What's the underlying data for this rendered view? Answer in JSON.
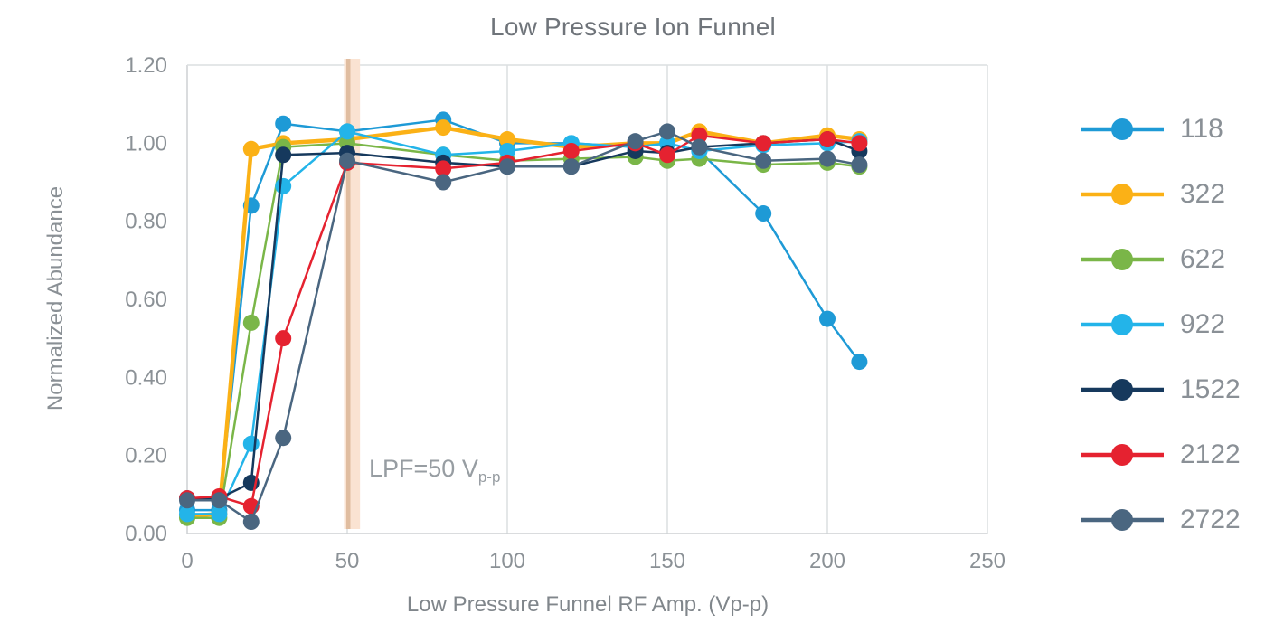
{
  "title": "Low Pressure Ion Funnel",
  "axes": {
    "x": {
      "label": "Low Pressure Funnel RF Amp. (Vp-p)",
      "tick_labels": [
        "0",
        "50",
        "100",
        "150",
        "200",
        "250"
      ],
      "tick_values": [
        0,
        50,
        100,
        150,
        200,
        250
      ],
      "min": 0,
      "max": 250
    },
    "y": {
      "label": "Normalized Abundance",
      "tick_labels": [
        "0.00",
        "0.20",
        "0.40",
        "0.60",
        "0.80",
        "1.00",
        "1.20"
      ],
      "tick_values": [
        0,
        0.2,
        0.4,
        0.6,
        0.8,
        1.0,
        1.2
      ],
      "min": 0,
      "max": 1.2
    }
  },
  "annotation": {
    "text": "LPF=50 V",
    "subscript": "p-p"
  },
  "highlight_band": {
    "x_start": 49,
    "x_end": 54,
    "stripe_x": 50,
    "fill": "#fae3d2",
    "stripe_color": "#e0bda0"
  },
  "style_colors": {
    "grid": "#dcdfe1",
    "axis": "#cdd0d3",
    "tick_text": "#8b9196",
    "title_text": "#6f747a",
    "annotation_text": "#979da2"
  },
  "chart_data": {
    "type": "line",
    "title": "Low Pressure Ion Funnel",
    "xlabel": "Low Pressure Funnel RF Amp. (Vp-p)",
    "ylabel": "Normalized Abundance",
    "xlim": [
      0,
      250
    ],
    "ylim": [
      0,
      1.2
    ],
    "grid": "vertical-only",
    "legend_position": "right",
    "x": [
      0,
      10,
      20,
      30,
      50,
      80,
      100,
      120,
      140,
      150,
      160,
      180,
      200,
      210
    ],
    "series": [
      {
        "name": "118",
        "color": "#1e9ad6",
        "line_width": 2.5,
        "values": [
          0.06,
          0.06,
          0.84,
          1.05,
          1.03,
          1.06,
          1.0,
          1.0,
          0.99,
          1.0,
          0.98,
          0.82,
          0.55,
          0.44
        ]
      },
      {
        "name": "322",
        "color": "#fbb116",
        "line_width": 4.5,
        "values": [
          0.045,
          0.05,
          0.985,
          1.0,
          1.01,
          1.04,
          1.01,
          0.99,
          1.0,
          1.0,
          1.03,
          1.0,
          1.02,
          1.01
        ]
      },
      {
        "name": "622",
        "color": "#7ab648",
        "line_width": 2.5,
        "values": [
          0.04,
          0.04,
          0.54,
          0.99,
          1.0,
          0.97,
          0.955,
          0.96,
          0.965,
          0.955,
          0.96,
          0.945,
          0.95,
          0.94
        ]
      },
      {
        "name": "922",
        "color": "#23b4e9",
        "line_width": 2.5,
        "values": [
          0.05,
          0.05,
          0.23,
          0.89,
          1.03,
          0.97,
          0.98,
          1.0,
          0.99,
          1.0,
          0.98,
          0.995,
          1.0,
          1.005
        ]
      },
      {
        "name": "1522",
        "color": "#16395d",
        "line_width": 2.5,
        "values": [
          0.09,
          0.09,
          0.13,
          0.97,
          0.975,
          0.95,
          0.94,
          0.94,
          0.98,
          0.975,
          0.99,
          1.0,
          1.01,
          0.98
        ]
      },
      {
        "name": "2122",
        "color": "#e52230",
        "line_width": 2.5,
        "values": [
          0.09,
          0.095,
          0.07,
          0.5,
          0.95,
          0.935,
          0.95,
          0.98,
          1.0,
          0.97,
          1.02,
          1.0,
          1.01,
          1.0
        ]
      },
      {
        "name": "2722",
        "color": "#4a6680",
        "line_width": 2.5,
        "values": [
          0.085,
          0.085,
          0.03,
          0.245,
          0.955,
          0.9,
          0.94,
          0.94,
          1.005,
          1.03,
          0.99,
          0.955,
          0.96,
          0.945
        ]
      }
    ]
  }
}
